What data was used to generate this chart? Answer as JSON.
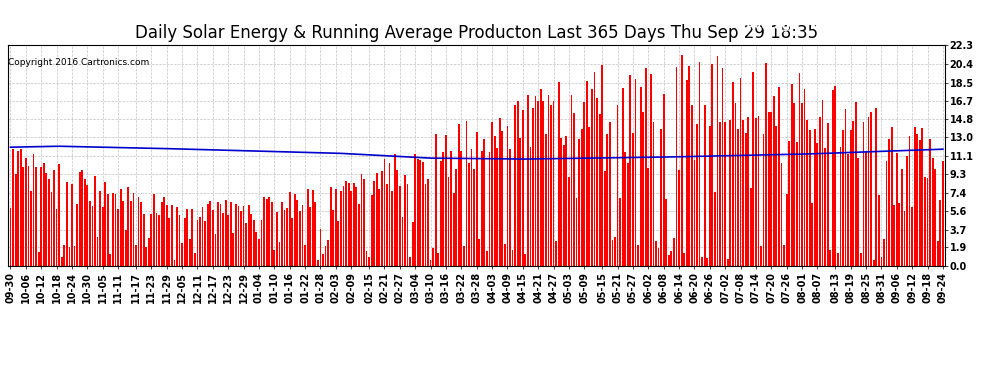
{
  "title": "Daily Solar Energy & Running Average Producton Last 365 Days Thu Sep 29 18:35",
  "copyright": "Copyright 2016 Cartronics.com",
  "ylabel_right_ticks": [
    0.0,
    1.9,
    3.7,
    5.6,
    7.4,
    9.3,
    11.1,
    13.0,
    14.8,
    16.7,
    18.5,
    20.4,
    22.3
  ],
  "ymax": 22.3,
  "ymin": 0.0,
  "bar_color": "#ff0000",
  "avg_line_color": "#0000cc",
  "background_color": "#ffffff",
  "legend_avg_color": "#0000aa",
  "legend_daily_color": "#dd0000",
  "x_labels": [
    "09-30",
    "10-06",
    "10-12",
    "10-18",
    "10-24",
    "10-30",
    "11-05",
    "11-11",
    "11-17",
    "11-23",
    "11-29",
    "12-05",
    "12-11",
    "12-17",
    "12-23",
    "12-29",
    "01-04",
    "01-10",
    "01-16",
    "01-22",
    "01-28",
    "02-03",
    "02-09",
    "02-15",
    "02-21",
    "02-27",
    "03-04",
    "03-10",
    "03-16",
    "03-22",
    "03-28",
    "04-03",
    "04-09",
    "04-15",
    "04-21",
    "04-27",
    "05-03",
    "05-09",
    "05-15",
    "05-21",
    "05-27",
    "06-02",
    "06-08",
    "06-14",
    "06-20",
    "06-26",
    "07-02",
    "07-08",
    "07-14",
    "07-20",
    "07-26",
    "08-01",
    "08-07",
    "08-13",
    "08-19",
    "08-25",
    "08-31",
    "09-06",
    "09-12",
    "09-18",
    "09-24"
  ],
  "num_bars": 365,
  "title_fontsize": 12,
  "tick_fontsize": 7,
  "legend_fontsize": 8
}
